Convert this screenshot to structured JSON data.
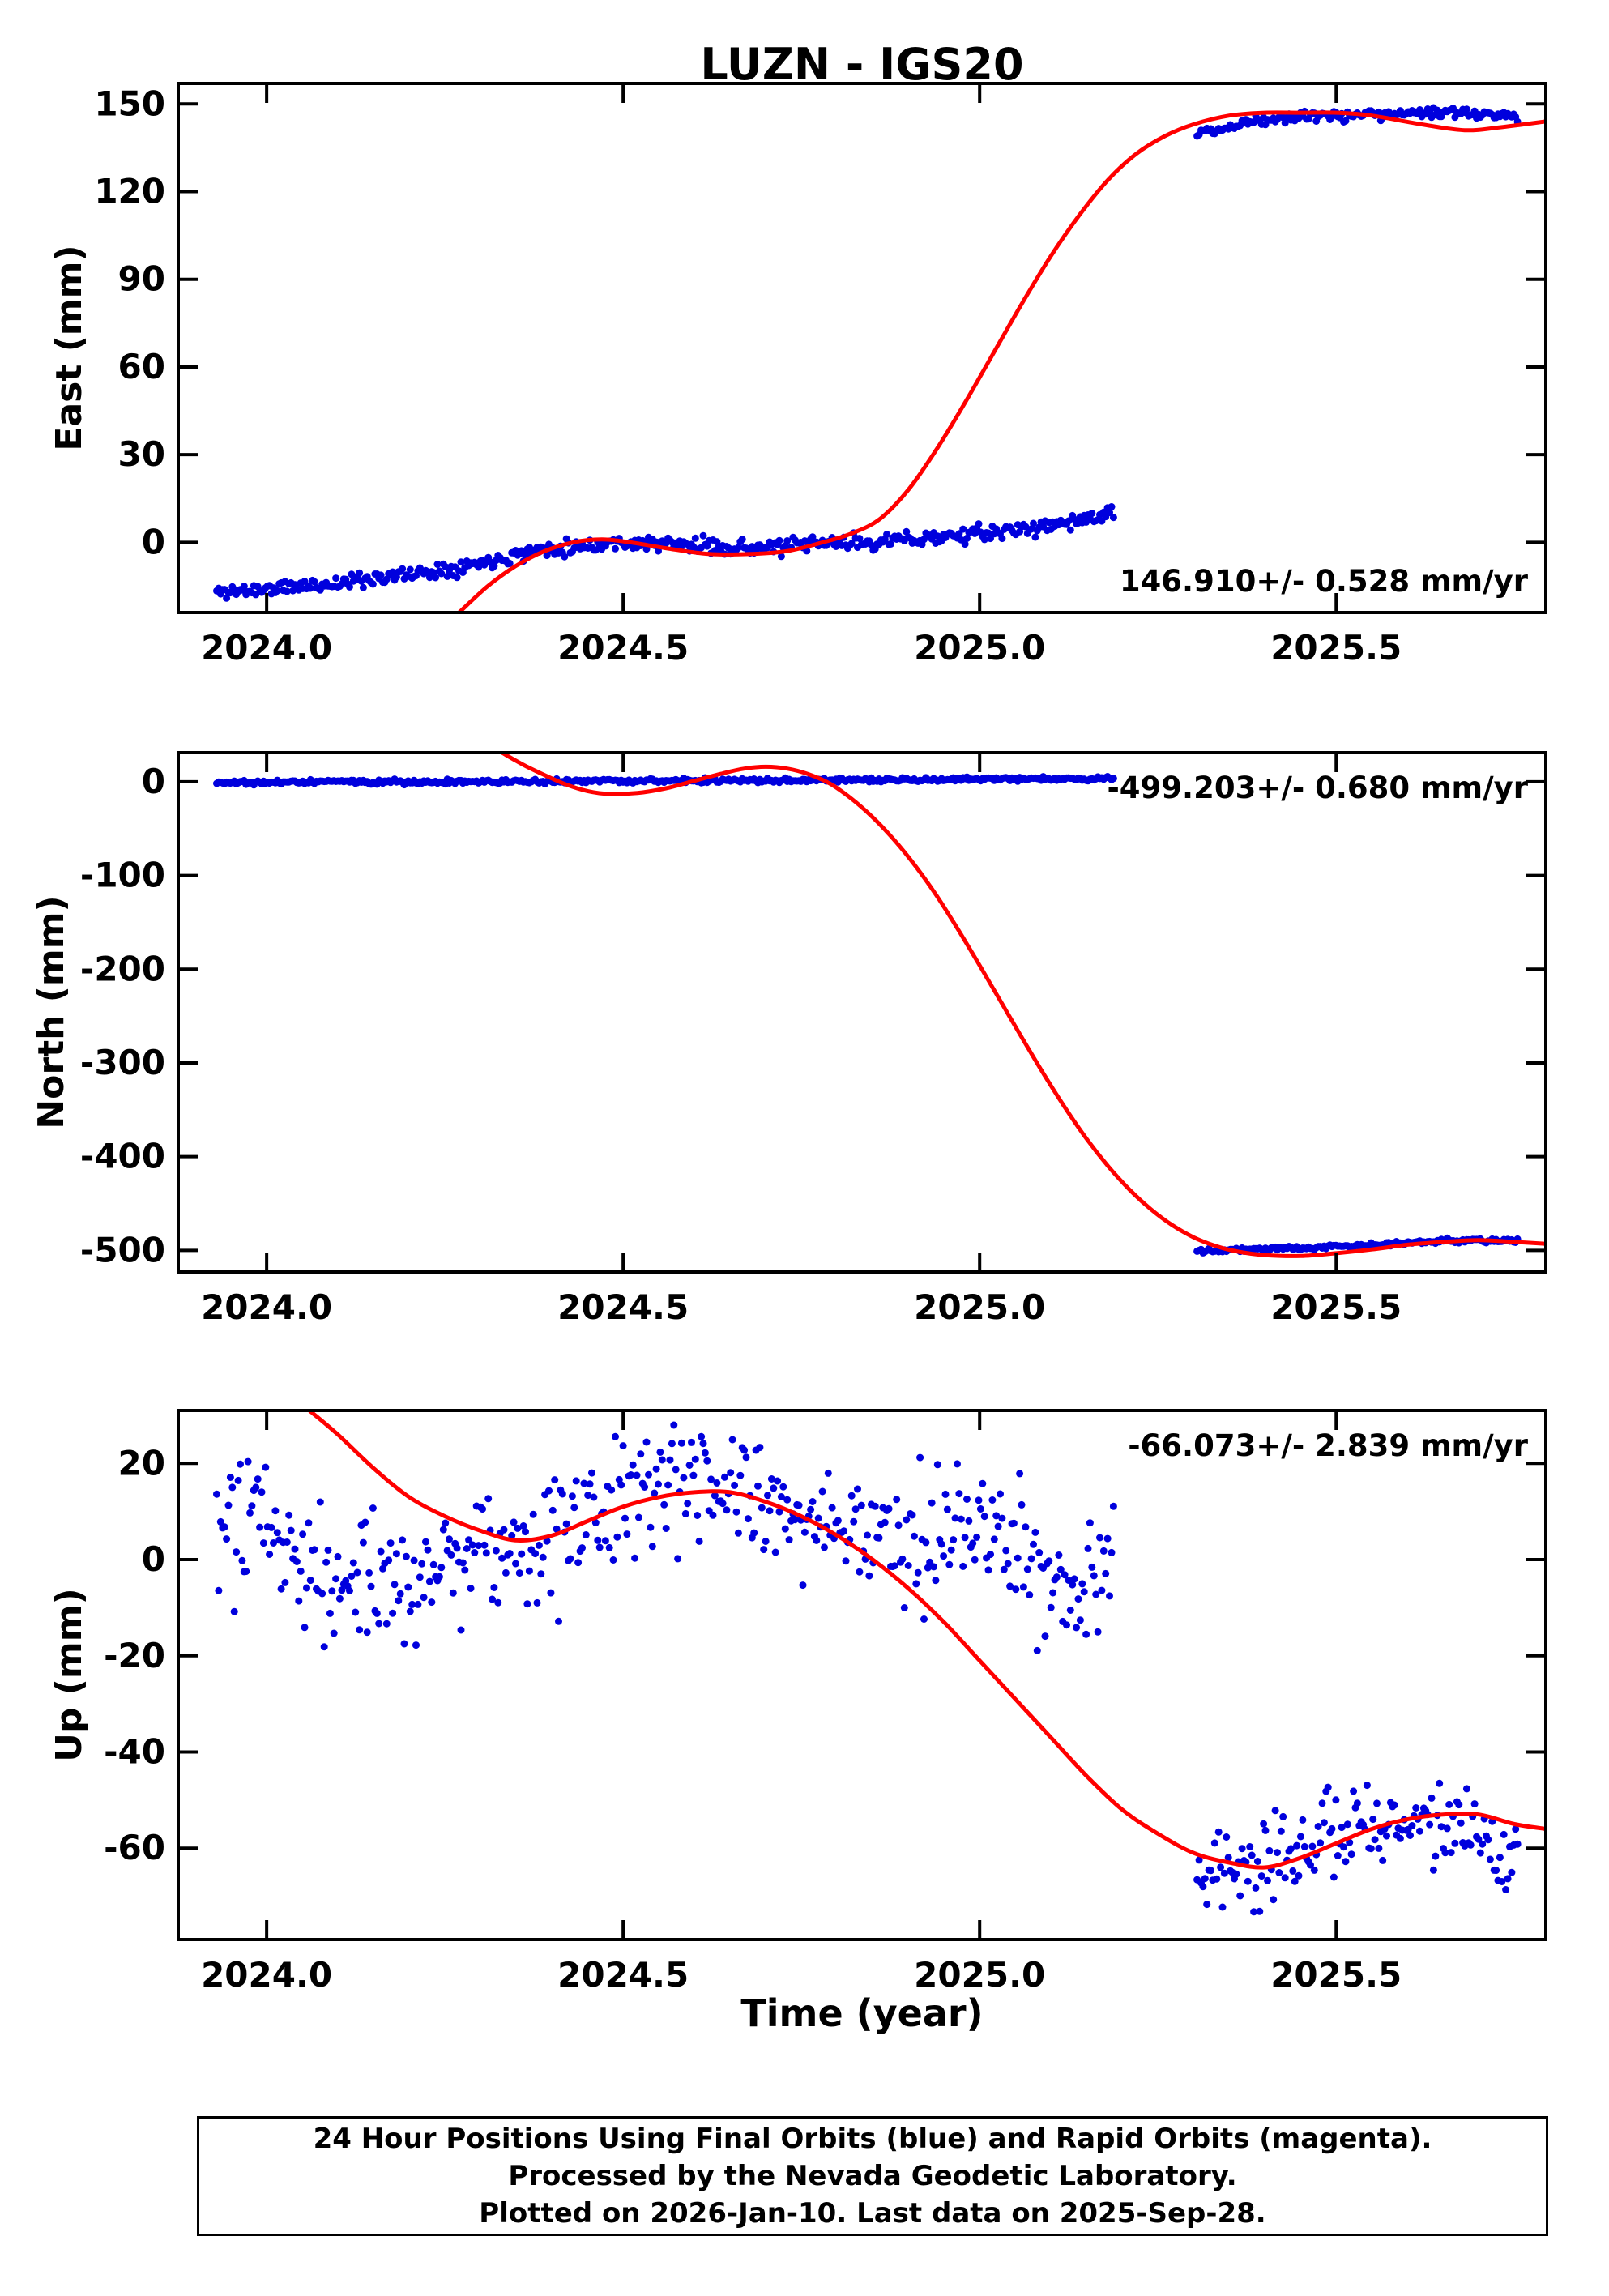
{
  "title": "LUZN - IGS20",
  "xlabel": "Time (year)",
  "footer": {
    "lines": [
      "24 Hour Positions Using Final Orbits (blue) and Rapid Orbits (magenta).",
      "Processed by the Nevada Geodetic Laboratory.",
      "Plotted on 2026-Jan-10. Last data on 2025-Sep-28."
    ]
  },
  "colors": {
    "scatter": "#0000dd",
    "model": "#ff0000",
    "frame": "#000000",
    "text": "#000000",
    "background": "#ffffff"
  },
  "chart_data": [
    {
      "name": "east",
      "type": "scatter",
      "ylabel": "East (mm)",
      "annotation": "146.910+/- 0.528 mm/yr",
      "annotation_pos": "bottom-right",
      "xlim": [
        2023.876,
        2025.794
      ],
      "ylim": [
        -24,
        157
      ],
      "xticks": [
        2024.0,
        2024.5,
        2025.0,
        2025.5
      ],
      "yticks": [
        0,
        30,
        60,
        90,
        120,
        150
      ],
      "model_curve": [
        [
          2024.27,
          -24
        ],
        [
          2024.31,
          -15
        ],
        [
          2024.35,
          -8
        ],
        [
          2024.39,
          -3
        ],
        [
          2024.43,
          0
        ],
        [
          2024.47,
          1
        ],
        [
          2024.51,
          0
        ],
        [
          2024.56,
          -2
        ],
        [
          2024.62,
          -4
        ],
        [
          2024.68,
          -4
        ],
        [
          2024.73,
          -3
        ],
        [
          2024.78,
          0
        ],
        [
          2024.82,
          3
        ],
        [
          2024.86,
          8
        ],
        [
          2024.9,
          18
        ],
        [
          2024.94,
          32
        ],
        [
          2024.98,
          48
        ],
        [
          2025.02,
          65
        ],
        [
          2025.06,
          82
        ],
        [
          2025.1,
          98
        ],
        [
          2025.14,
          112
        ],
        [
          2025.18,
          124
        ],
        [
          2025.22,
          133
        ],
        [
          2025.26,
          139
        ],
        [
          2025.3,
          143
        ],
        [
          2025.35,
          146
        ],
        [
          2025.4,
          147
        ],
        [
          2025.45,
          147
        ],
        [
          2025.5,
          147
        ],
        [
          2025.55,
          146
        ],
        [
          2025.62,
          143
        ],
        [
          2025.68,
          141
        ],
        [
          2025.73,
          142
        ],
        [
          2025.794,
          144
        ]
      ],
      "scatter_segments": [
        {
          "x_start": 2023.93,
          "x_end": 2025.19,
          "step": 0.00274,
          "noise": 1.3,
          "seed": 11,
          "trend": [
            [
              2023.93,
              -17
            ],
            [
              2024.0,
              -16
            ],
            [
              2024.05,
              -15
            ],
            [
              2024.1,
              -14
            ],
            [
              2024.15,
              -12
            ],
            [
              2024.2,
              -11
            ],
            [
              2024.25,
              -9
            ],
            [
              2024.3,
              -7
            ],
            [
              2024.35,
              -4
            ],
            [
              2024.4,
              -2
            ],
            [
              2024.45,
              -1
            ],
            [
              2024.5,
              0
            ],
            [
              2024.6,
              -1
            ],
            [
              2024.7,
              -2
            ],
            [
              2024.75,
              -1
            ],
            [
              2024.8,
              0
            ],
            [
              2024.85,
              0
            ],
            [
              2024.9,
              1
            ],
            [
              2024.95,
              2
            ],
            [
              2025.0,
              3
            ],
            [
              2025.05,
              4
            ],
            [
              2025.1,
              6
            ],
            [
              2025.15,
              8
            ],
            [
              2025.19,
              10
            ]
          ]
        },
        {
          "x_start": 2025.305,
          "x_end": 2025.755,
          "step": 0.00274,
          "noise": 0.9,
          "seed": 12,
          "trend": [
            [
              2025.305,
              140
            ],
            [
              2025.34,
              142
            ],
            [
              2025.38,
              144
            ],
            [
              2025.44,
              146
            ],
            [
              2025.52,
              146
            ],
            [
              2025.6,
              147
            ],
            [
              2025.68,
              147
            ],
            [
              2025.72,
              146
            ],
            [
              2025.755,
              146
            ]
          ]
        }
      ]
    },
    {
      "name": "north",
      "type": "scatter",
      "ylabel": "North (mm)",
      "annotation": "-499.203+/- 0.680 mm/yr",
      "annotation_pos": "top-right",
      "xlim": [
        2023.876,
        2025.794
      ],
      "ylim": [
        -523,
        31
      ],
      "xticks": [
        2024.0,
        2024.5,
        2025.0,
        2025.5
      ],
      "yticks": [
        0,
        -100,
        -200,
        -300,
        -400,
        -500
      ],
      "model_curve": [
        [
          2024.33,
          31
        ],
        [
          2024.36,
          18
        ],
        [
          2024.39,
          7
        ],
        [
          2024.42,
          -3
        ],
        [
          2024.45,
          -10
        ],
        [
          2024.48,
          -13
        ],
        [
          2024.52,
          -12
        ],
        [
          2024.56,
          -7
        ],
        [
          2024.6,
          1
        ],
        [
          2024.64,
          9
        ],
        [
          2024.67,
          14
        ],
        [
          2024.7,
          16
        ],
        [
          2024.73,
          14
        ],
        [
          2024.76,
          8
        ],
        [
          2024.79,
          -2
        ],
        [
          2024.82,
          -18
        ],
        [
          2024.85,
          -38
        ],
        [
          2024.88,
          -62
        ],
        [
          2024.91,
          -90
        ],
        [
          2024.94,
          -122
        ],
        [
          2024.97,
          -158
        ],
        [
          2025.0,
          -196
        ],
        [
          2025.03,
          -235
        ],
        [
          2025.06,
          -274
        ],
        [
          2025.09,
          -312
        ],
        [
          2025.12,
          -348
        ],
        [
          2025.15,
          -381
        ],
        [
          2025.18,
          -410
        ],
        [
          2025.21,
          -435
        ],
        [
          2025.24,
          -456
        ],
        [
          2025.27,
          -473
        ],
        [
          2025.3,
          -486
        ],
        [
          2025.33,
          -495
        ],
        [
          2025.36,
          -501
        ],
        [
          2025.4,
          -505
        ],
        [
          2025.45,
          -506
        ],
        [
          2025.5,
          -503
        ],
        [
          2025.55,
          -499
        ],
        [
          2025.6,
          -494
        ],
        [
          2025.65,
          -491
        ],
        [
          2025.7,
          -489
        ],
        [
          2025.75,
          -491
        ],
        [
          2025.794,
          -493
        ]
      ],
      "scatter_segments": [
        {
          "x_start": 2023.93,
          "x_end": 2025.19,
          "step": 0.00274,
          "noise": 1.2,
          "seed": 21,
          "trend": [
            [
              2023.93,
              -1
            ],
            [
              2024.1,
              0
            ],
            [
              2024.3,
              0
            ],
            [
              2024.5,
              1
            ],
            [
              2024.7,
              1
            ],
            [
              2024.9,
              2
            ],
            [
              2025.05,
              3
            ],
            [
              2025.19,
              3
            ]
          ]
        },
        {
          "x_start": 2025.305,
          "x_end": 2025.755,
          "step": 0.00274,
          "noise": 1.1,
          "seed": 22,
          "trend": [
            [
              2025.305,
              -500
            ],
            [
              2025.36,
              -499
            ],
            [
              2025.42,
              -498
            ],
            [
              2025.5,
              -496
            ],
            [
              2025.58,
              -493
            ],
            [
              2025.65,
              -490
            ],
            [
              2025.7,
              -489
            ],
            [
              2025.755,
              -490
            ]
          ]
        }
      ]
    },
    {
      "name": "up",
      "type": "scatter",
      "ylabel": "Up (mm)",
      "annotation": "-66.073+/- 2.839 mm/yr",
      "annotation_pos": "top-right",
      "xlim": [
        2023.876,
        2025.794
      ],
      "ylim": [
        -79,
        31
      ],
      "xticks": [
        2024.0,
        2024.5,
        2025.0,
        2025.5
      ],
      "yticks": [
        20,
        0,
        -20,
        -40,
        -60
      ],
      "model_curve": [
        [
          2024.06,
          31
        ],
        [
          2024.1,
          26
        ],
        [
          2024.15,
          19
        ],
        [
          2024.2,
          13
        ],
        [
          2024.25,
          9
        ],
        [
          2024.3,
          6
        ],
        [
          2024.35,
          4
        ],
        [
          2024.4,
          5
        ],
        [
          2024.45,
          8
        ],
        [
          2024.5,
          11
        ],
        [
          2024.55,
          13
        ],
        [
          2024.6,
          14
        ],
        [
          2024.65,
          14
        ],
        [
          2024.7,
          12
        ],
        [
          2024.75,
          9
        ],
        [
          2024.8,
          5
        ],
        [
          2024.85,
          0
        ],
        [
          2024.9,
          -6
        ],
        [
          2024.95,
          -13
        ],
        [
          2025.0,
          -21
        ],
        [
          2025.05,
          -29
        ],
        [
          2025.1,
          -37
        ],
        [
          2025.15,
          -45
        ],
        [
          2025.2,
          -52
        ],
        [
          2025.25,
          -57
        ],
        [
          2025.3,
          -61
        ],
        [
          2025.35,
          -63
        ],
        [
          2025.4,
          -64
        ],
        [
          2025.45,
          -62
        ],
        [
          2025.5,
          -59
        ],
        [
          2025.55,
          -56
        ],
        [
          2025.6,
          -54
        ],
        [
          2025.65,
          -53
        ],
        [
          2025.7,
          -53
        ],
        [
          2025.75,
          -55
        ],
        [
          2025.794,
          -56
        ]
      ],
      "scatter_segments": [
        {
          "x_start": 2023.93,
          "x_end": 2025.19,
          "step": 0.00274,
          "noise": 7,
          "seed": 31,
          "trend": [
            [
              2023.93,
              3
            ],
            [
              2024.0,
              8
            ],
            [
              2024.05,
              0
            ],
            [
              2024.1,
              -3
            ],
            [
              2024.15,
              -2
            ],
            [
              2024.2,
              -5
            ],
            [
              2024.25,
              0
            ],
            [
              2024.3,
              4
            ],
            [
              2024.35,
              2
            ],
            [
              2024.4,
              3
            ],
            [
              2024.45,
              8
            ],
            [
              2024.5,
              12
            ],
            [
              2024.55,
              14
            ],
            [
              2024.6,
              15
            ],
            [
              2024.65,
              14
            ],
            [
              2024.7,
              10
            ],
            [
              2024.75,
              8
            ],
            [
              2024.8,
              9
            ],
            [
              2024.85,
              5
            ],
            [
              2024.9,
              3
            ],
            [
              2024.95,
              6
            ],
            [
              2025.0,
              7
            ],
            [
              2025.05,
              2
            ],
            [
              2025.1,
              -6
            ],
            [
              2025.15,
              -8
            ],
            [
              2025.19,
              0
            ]
          ]
        },
        {
          "x_start": 2025.305,
          "x_end": 2025.755,
          "step": 0.00274,
          "noise": 4.5,
          "seed": 32,
          "trend": [
            [
              2025.305,
              -66
            ],
            [
              2025.35,
              -65
            ],
            [
              2025.4,
              -62
            ],
            [
              2025.45,
              -60
            ],
            [
              2025.5,
              -57
            ],
            [
              2025.55,
              -55
            ],
            [
              2025.6,
              -54
            ],
            [
              2025.65,
              -55
            ],
            [
              2025.7,
              -57
            ],
            [
              2025.755,
              -60
            ]
          ]
        }
      ]
    }
  ]
}
